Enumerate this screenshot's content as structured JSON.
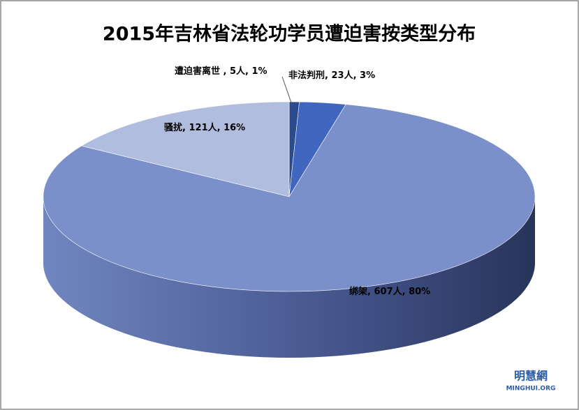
{
  "chart_data": {
    "type": "pie3d",
    "title": "2015年吉林省法轮功学员遭迫害按类型分布",
    "categories": [
      "遭迫害离世 ",
      "非法判刑",
      "绑架",
      "骚扰"
    ],
    "values": [
      5,
      23,
      607,
      121
    ],
    "value_labels": [
      "5人",
      "23人",
      "607人",
      "121人"
    ],
    "percents": [
      1,
      3,
      80,
      16
    ],
    "percent_labels": [
      "1%",
      "3%",
      "80%",
      "16%"
    ],
    "label_separator": ", ",
    "colors": [
      "#2c4a8e",
      "#4066c0",
      "#7b8fcb",
      "#b1bddf"
    ],
    "watermark": "明慧網",
    "watermark_sub": "MINGHUI.ORG"
  }
}
